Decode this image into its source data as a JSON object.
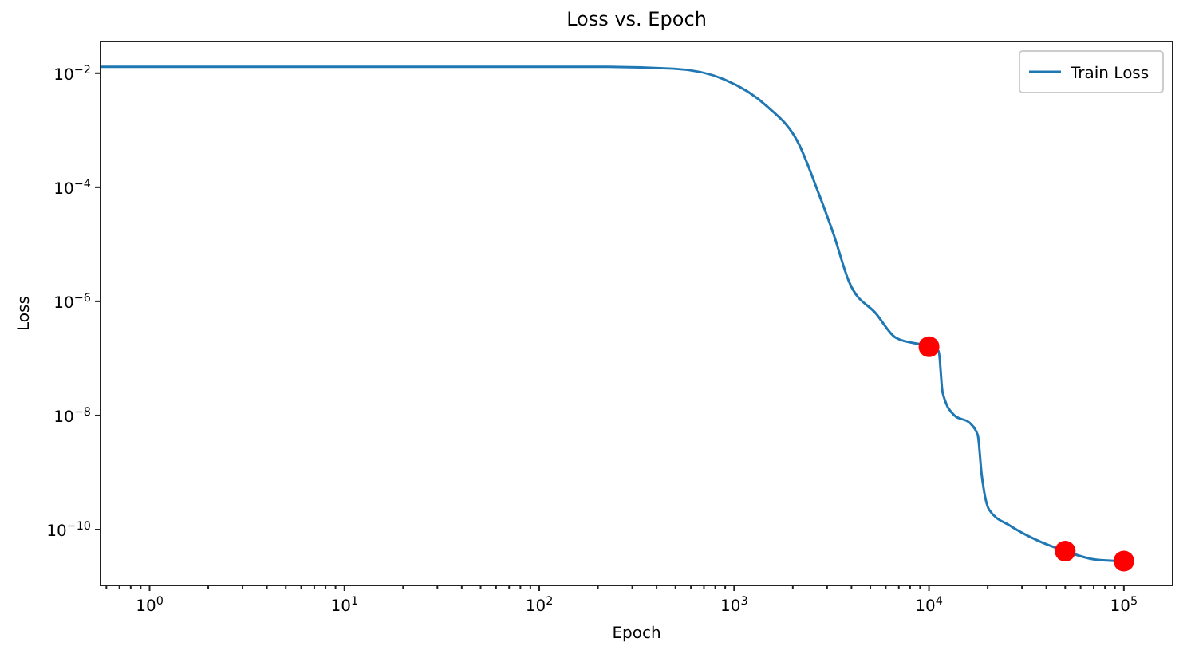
{
  "chart_data": {
    "type": "line",
    "title": "Loss vs. Epoch",
    "xlabel": "Epoch",
    "ylabel": "Loss",
    "log": "xy",
    "grid": false,
    "legend": "top right",
    "xlim": [
      0.56,
      178000
    ],
    "ylim": [
      1.05e-11,
      0.036
    ],
    "xticks": [
      {
        "value": 0.6,
        "label": null
      },
      {
        "value": 0.7,
        "label": null
      },
      {
        "value": 0.8,
        "label": null
      },
      {
        "value": 0.9,
        "label": null
      },
      {
        "value": 1,
        "label": "10$^{0}$"
      },
      {
        "value": 2,
        "label": null
      },
      {
        "value": 3,
        "label": null
      },
      {
        "value": 4,
        "label": null
      },
      {
        "value": 5,
        "label": null
      },
      {
        "value": 6,
        "label": null
      },
      {
        "value": 7,
        "label": null
      },
      {
        "value": 8,
        "label": null
      },
      {
        "value": 9,
        "label": null
      },
      {
        "value": 10,
        "label": "10$^{1}$"
      },
      {
        "value": 20,
        "label": null
      },
      {
        "value": 30,
        "label": null
      },
      {
        "value": 40,
        "label": null
      },
      {
        "value": 50,
        "label": null
      },
      {
        "value": 60,
        "label": null
      },
      {
        "value": 70,
        "label": null
      },
      {
        "value": 80,
        "label": null
      },
      {
        "value": 90,
        "label": null
      },
      {
        "value": 100,
        "label": "10$^{2}$"
      },
      {
        "value": 200,
        "label": null
      },
      {
        "value": 300,
        "label": null
      },
      {
        "value": 400,
        "label": null
      },
      {
        "value": 500,
        "label": null
      },
      {
        "value": 600,
        "label": null
      },
      {
        "value": 700,
        "label": null
      },
      {
        "value": 800,
        "label": null
      },
      {
        "value": 900,
        "label": null
      },
      {
        "value": 1000,
        "label": "10$^{3}$"
      },
      {
        "value": 2000,
        "label": null
      },
      {
        "value": 3000,
        "label": null
      },
      {
        "value": 4000,
        "label": null
      },
      {
        "value": 5000,
        "label": null
      },
      {
        "value": 6000,
        "label": null
      },
      {
        "value": 7000,
        "label": null
      },
      {
        "value": 8000,
        "label": null
      },
      {
        "value": 9000,
        "label": null
      },
      {
        "value": 10000,
        "label": "10$^{4}$"
      },
      {
        "value": 20000,
        "label": null
      },
      {
        "value": 30000,
        "label": null
      },
      {
        "value": 40000,
        "label": null
      },
      {
        "value": 50000,
        "label": null
      },
      {
        "value": 60000,
        "label": null
      },
      {
        "value": 70000,
        "label": null
      },
      {
        "value": 80000,
        "label": null
      },
      {
        "value": 90000,
        "label": null
      },
      {
        "value": 100000,
        "label": "10$^{5}$"
      }
    ],
    "yticks": [
      {
        "value": 0.01,
        "label": "10$^{−2}$"
      },
      {
        "value": 0.0001,
        "label": "10$^{−4}$"
      },
      {
        "value": 1e-06,
        "label": "10$^{−6}$"
      },
      {
        "value": 1e-08,
        "label": "10$^{−8}$"
      },
      {
        "value": 1e-10,
        "label": "10$^{−10}$"
      }
    ],
    "series": [
      {
        "name": "Train Loss",
        "color": "#1f77b4",
        "marker": "none",
        "line_style": "solid",
        "x": [
          0.56,
          1,
          10,
          100,
          195,
          490,
          890,
          1480,
          2140,
          2690,
          3240,
          3890,
          5370,
          6760,
          10000,
          11200,
          11750,
          13500,
          16200,
          17800,
          18600,
          20400,
          26300,
          35500,
          50000,
          70800,
          100000
        ],
        "values": [
          0.013,
          0.013,
          0.013,
          0.013,
          0.013,
          0.012,
          0.0078,
          0.0026,
          0.00059,
          8.5e-05,
          1.5e-05,
          2.2e-06,
          6e-07,
          2.3e-07,
          1.6e-07,
          1.35e-07,
          2.5e-08,
          1e-08,
          7.4e-09,
          4.5e-09,
          9.8e-10,
          2.2e-10,
          1.15e-10,
          6.6e-11,
          4.2e-11,
          3e-11,
          2.8e-11
        ]
      },
      {
        "type": "scatter",
        "color": "#ff0000",
        "marker": "circle",
        "x": [
          10000,
          50000,
          100000
        ],
        "values": [
          1.6e-07,
          4.2e-11,
          2.8e-11
        ]
      }
    ]
  }
}
